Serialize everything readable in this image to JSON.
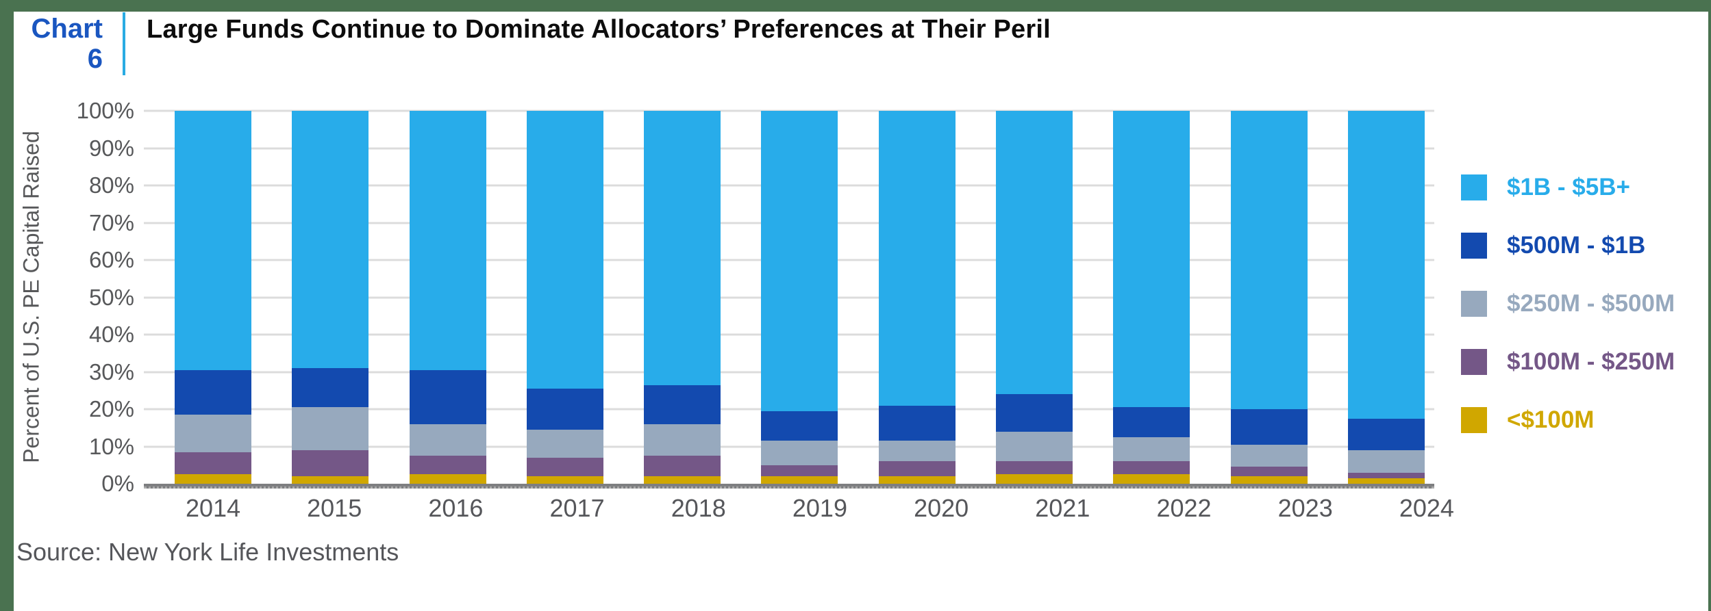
{
  "frame": {
    "border_color": "#4A7250"
  },
  "header": {
    "chart_label_line1": "Chart",
    "chart_label_line2": "6",
    "chart_label_color": "#1A56C0",
    "divider_color": "#29ABE2",
    "title": "Large Funds Continue to Dominate Allocators’ Preferences at Their Peril"
  },
  "source_note": "Source: New York Life Investments",
  "chart_data": {
    "type": "bar",
    "stacked": true,
    "title": "Large Funds Continue to Dominate Allocators’ Preferences at Their Peril",
    "xlabel": "",
    "ylabel": "Percent of U.S. PE Capital Raised",
    "ylim": [
      0,
      100
    ],
    "ytick_step": 10,
    "ytick_labels": [
      "0%",
      "10%",
      "20%",
      "30%",
      "40%",
      "50%",
      "60%",
      "70%",
      "80%",
      "90%",
      "100%"
    ],
    "grid": true,
    "legend_position": "right",
    "unit": "% of U.S. PE capital raised",
    "categories": [
      "2014",
      "2015",
      "2016",
      "2017",
      "2018",
      "2019",
      "2020",
      "2021",
      "2022",
      "2023",
      "2024"
    ],
    "series": [
      {
        "name": "<$100M",
        "color": "#D0A700",
        "values": [
          2.5,
          2,
          2.5,
          2,
          2,
          2,
          2,
          2.5,
          2.5,
          2,
          1.5
        ]
      },
      {
        "name": "$100M - $250M",
        "color": "#745787",
        "values": [
          6,
          7,
          5,
          5,
          5.5,
          3,
          4,
          3.5,
          3.5,
          2.5,
          1.5
        ]
      },
      {
        "name": "$250M - $500M",
        "color": "#97A9BE",
        "values": [
          10,
          11.5,
          8.5,
          7.5,
          8.5,
          6.5,
          5.5,
          8,
          6.5,
          6,
          6
        ]
      },
      {
        "name": "$500M - $1B",
        "color": "#134AAF",
        "values": [
          12,
          10.5,
          14.5,
          11,
          10.5,
          8,
          9.5,
          10,
          8,
          9.5,
          8.5
        ]
      },
      {
        "name": "$1B - $5B+",
        "color": "#28ACEA",
        "values": [
          69.5,
          69,
          69.5,
          74.5,
          73.5,
          80.5,
          79,
          76,
          79.5,
          80,
          82.5
        ]
      }
    ],
    "legend_order_top_to_bottom": [
      "$1B - $5B+",
      "$500M - $1B",
      "$250M - $500M",
      "$100M - $250M",
      "<$100M"
    ]
  }
}
